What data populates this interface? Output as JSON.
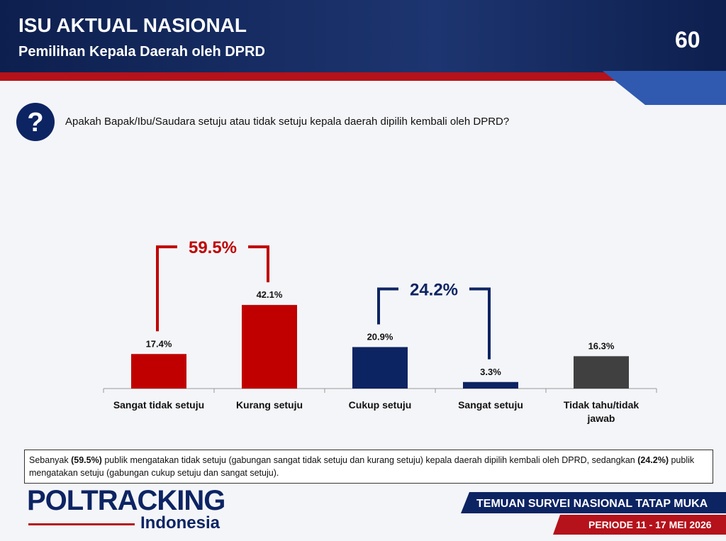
{
  "header": {
    "title": "ISU AKTUAL NASIONAL",
    "subtitle": "Pemilihan Kepala Daerah oleh DPRD",
    "page_number": "60"
  },
  "question": "Apakah Bapak/Ibu/Saudara setuju atau tidak setuju kepala daerah dipilih kembali oleh DPRD?",
  "chart_data": {
    "type": "bar",
    "categories": [
      "Sangat tidak setuju",
      "Kurang setuju",
      "Cukup setuju",
      "Sangat setuju",
      "Tidak tahu/tidak jawab"
    ],
    "values": [
      17.4,
      42.1,
      20.9,
      3.3,
      16.3
    ],
    "value_labels": [
      "17.4%",
      "42.1%",
      "20.9%",
      "3.3%",
      "16.3%"
    ],
    "colors": [
      "#c00000",
      "#c00000",
      "#0d2463",
      "#0d2463",
      "#404040"
    ],
    "ylim": [
      0,
      50
    ],
    "groups": [
      {
        "value": 59.5,
        "label": "59.5%",
        "color": "#c00000"
      },
      {
        "value": 24.2,
        "label": "24.2%",
        "color": "#0d2463"
      }
    ]
  },
  "note": [
    "Sebanyak ",
    "(59.5%)",
    " publik mengatakan tidak setuju (gabungan sangat tidak setuju dan kurang setuju) kepala daerah dipilih kembali oleh DPRD, sedangkan ",
    "(24.2%)",
    " publik mengatakan setuju (gabungan cukup setuju dan sangat setuju)."
  ],
  "footer": {
    "logo": "POLTRACKING",
    "logo_sub": "Indonesia",
    "survey": "TEMUAN SURVEI NASIONAL TATAP MUKA",
    "period": "PERIODE 11 - 17 MEI 2026"
  }
}
